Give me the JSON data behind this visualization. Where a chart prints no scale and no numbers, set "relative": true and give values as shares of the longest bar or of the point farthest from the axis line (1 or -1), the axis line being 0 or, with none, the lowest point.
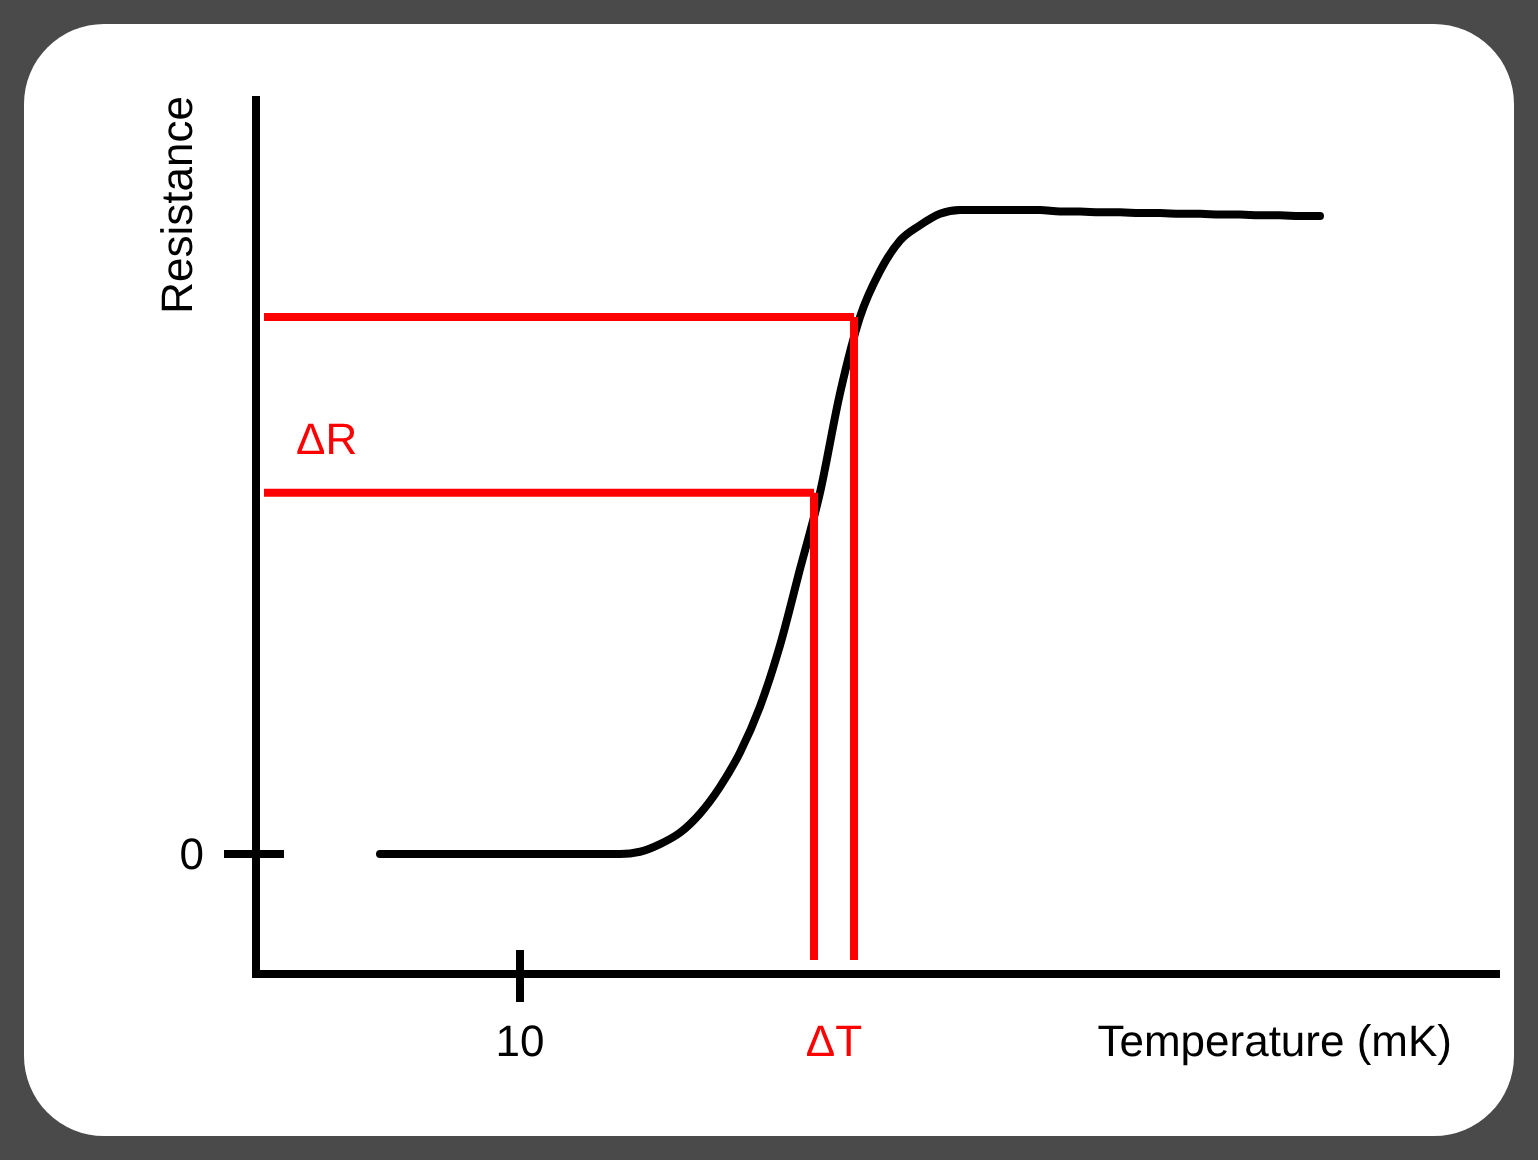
{
  "chart_data": {
    "type": "line",
    "relative": true,
    "xlabel": "Temperature (mK)",
    "ylabel": "Resistance",
    "color": "#000000",
    "categories": [
      null,
      null,
      null,
      null,
      null,
      null,
      null,
      null,
      null,
      null,
      null,
      null,
      null,
      null,
      null,
      null,
      null,
      null,
      null,
      null,
      null,
      null,
      null,
      null,
      null,
      null,
      null,
      null,
      null,
      null,
      null,
      null,
      null,
      null,
      null,
      null,
      null,
      null,
      null,
      null,
      null,
      null,
      null,
      null,
      null,
      null,
      null,
      null
    ],
    "values": [
      0.157,
      0.157,
      0.157,
      0.157,
      0.157,
      0.157,
      0.157,
      0.157,
      0.157,
      0.157,
      0.157,
      0.157,
      0.157,
      0.16,
      0.17,
      0.185,
      0.21,
      0.245,
      0.29,
      0.35,
      0.43,
      0.53,
      0.63,
      0.76,
      0.86,
      0.92,
      0.96,
      0.98,
      0.995,
      1,
      1,
      1,
      1,
      1,
      0.998,
      0.998,
      0.997,
      0.997,
      0.996,
      0.996,
      0.995,
      0.995,
      0.994,
      0.994,
      0.993,
      0.993,
      0.992,
      0.992
    ],
    "ref_lines": [
      {
        "axis": "y",
        "value": 0.86,
        "color": "#ff0000"
      },
      {
        "axis": "y",
        "value": 0.63,
        "color": "#ff0000"
      }
    ],
    "annotations": [
      "0",
      "10",
      "ΔR",
      "ΔT"
    ]
  }
}
